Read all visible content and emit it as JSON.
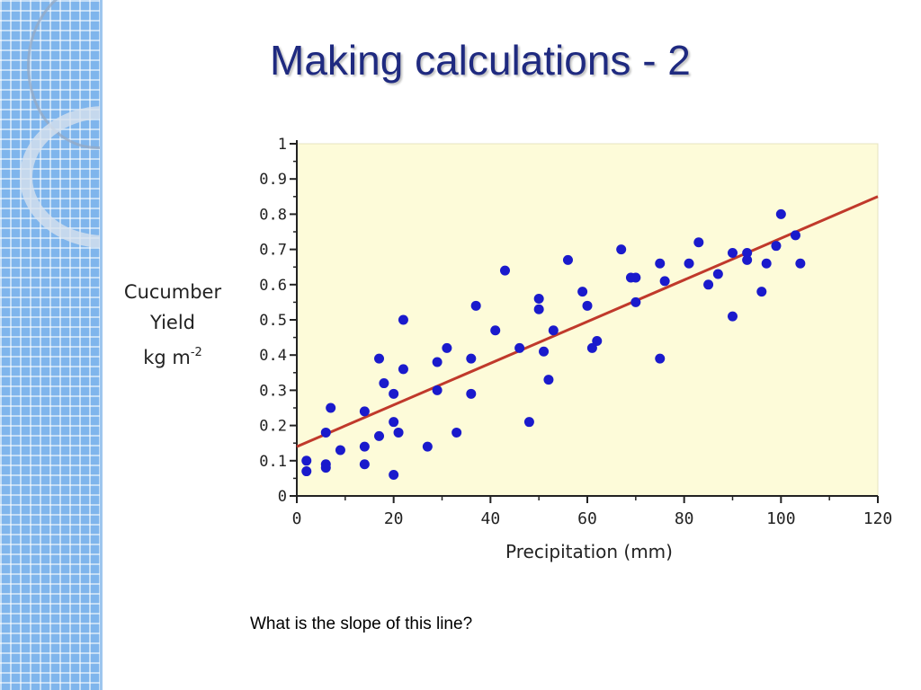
{
  "slide": {
    "title": "Making calculations - 2",
    "question": "What is the slope of this line?"
  },
  "colors": {
    "band": "#7fb5ec",
    "title": "#1f2a80",
    "plot_bg": "#fdfbd9",
    "points": "#1a1acc",
    "trend_line": "#c0392b"
  },
  "chart_data": {
    "type": "scatter",
    "xlabel": "Precipitation (mm)",
    "ylabel_lines": [
      "Cucumber",
      "Yield",
      "kg m",
      "-2"
    ],
    "xlim": [
      0,
      120
    ],
    "ylim": [
      0,
      1
    ],
    "x_ticks": [
      "0",
      "20",
      "40",
      "60",
      "80",
      "100",
      "120"
    ],
    "y_ticks": [
      "0",
      "0.1",
      "0.2",
      "0.3",
      "0.4",
      "0.5",
      "0.6",
      "0.7",
      "0.8",
      "0.9",
      "1"
    ],
    "grid": false,
    "trend_line": {
      "x": [
        0,
        120
      ],
      "y": [
        0.14,
        0.85
      ]
    },
    "points": [
      [
        2,
        0.1
      ],
      [
        2,
        0.07
      ],
      [
        6,
        0.09
      ],
      [
        6,
        0.08
      ],
      [
        6,
        0.18
      ],
      [
        7,
        0.25
      ],
      [
        9,
        0.13
      ],
      [
        14,
        0.09
      ],
      [
        14,
        0.14
      ],
      [
        14,
        0.24
      ],
      [
        17,
        0.17
      ],
      [
        17,
        0.39
      ],
      [
        18,
        0.32
      ],
      [
        20,
        0.29
      ],
      [
        20,
        0.21
      ],
      [
        20,
        0.06
      ],
      [
        21,
        0.18
      ],
      [
        22,
        0.36
      ],
      [
        22,
        0.5
      ],
      [
        27,
        0.14
      ],
      [
        29,
        0.3
      ],
      [
        29,
        0.38
      ],
      [
        31,
        0.42
      ],
      [
        33,
        0.18
      ],
      [
        36,
        0.39
      ],
      [
        36,
        0.29
      ],
      [
        37,
        0.54
      ],
      [
        41,
        0.47
      ],
      [
        43,
        0.64
      ],
      [
        46,
        0.42
      ],
      [
        48,
        0.21
      ],
      [
        50,
        0.56
      ],
      [
        50,
        0.53
      ],
      [
        51,
        0.41
      ],
      [
        52,
        0.33
      ],
      [
        53,
        0.47
      ],
      [
        56,
        0.67
      ],
      [
        59,
        0.58
      ],
      [
        60,
        0.54
      ],
      [
        61,
        0.42
      ],
      [
        62,
        0.44
      ],
      [
        67,
        0.7
      ],
      [
        69,
        0.62
      ],
      [
        70,
        0.62
      ],
      [
        70,
        0.55
      ],
      [
        75,
        0.66
      ],
      [
        75,
        0.39
      ],
      [
        76,
        0.61
      ],
      [
        81,
        0.66
      ],
      [
        83,
        0.72
      ],
      [
        85,
        0.6
      ],
      [
        87,
        0.63
      ],
      [
        90,
        0.69
      ],
      [
        90,
        0.51
      ],
      [
        93,
        0.69
      ],
      [
        93,
        0.67
      ],
      [
        96,
        0.58
      ],
      [
        97,
        0.66
      ],
      [
        99,
        0.71
      ],
      [
        100,
        0.8
      ],
      [
        103,
        0.74
      ],
      [
        104,
        0.66
      ]
    ]
  }
}
